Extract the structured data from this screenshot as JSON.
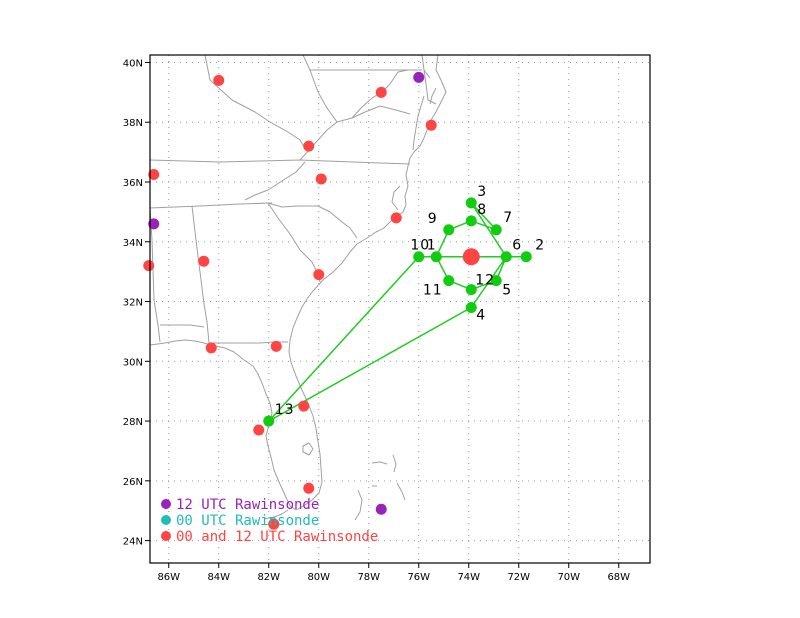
{
  "map": {
    "lon_range": [
      -86.75,
      -66.75
    ],
    "lat_range": [
      23.25,
      40.25
    ],
    "x_ticks": [
      {
        "lon": -86,
        "label": "86W"
      },
      {
        "lon": -84,
        "label": "84W"
      },
      {
        "lon": -82,
        "label": "82W"
      },
      {
        "lon": -80,
        "label": "80W"
      },
      {
        "lon": -78,
        "label": "78W"
      },
      {
        "lon": -76,
        "label": "76W"
      },
      {
        "lon": -74,
        "label": "74W"
      },
      {
        "lon": -72,
        "label": "72W"
      },
      {
        "lon": -70,
        "label": "70W"
      },
      {
        "lon": -68,
        "label": "68W"
      }
    ],
    "y_ticks": [
      {
        "lat": 24,
        "label": "24N"
      },
      {
        "lat": 26,
        "label": "26N"
      },
      {
        "lat": 28,
        "label": "28N"
      },
      {
        "lat": 30,
        "label": "30N"
      },
      {
        "lat": 32,
        "label": "32N"
      },
      {
        "lat": 34,
        "label": "34N"
      },
      {
        "lat": 36,
        "label": "36N"
      },
      {
        "lat": 38,
        "label": "38N"
      },
      {
        "lat": 40,
        "label": "40N"
      }
    ],
    "grid": true,
    "colors": {
      "coast": "#a0a0a0",
      "grid": "#9a9a9a",
      "track": "#22cc22",
      "point": "#11cc11",
      "center": "#ff4444",
      "both_utc": "#ff4444",
      "utc12": "#9922bb",
      "utc00": "#22bbbb"
    },
    "legend": [
      {
        "label": "12 UTC Rawinsonde",
        "color": "#9922bb"
      },
      {
        "label": "00 UTC Rawinsonde",
        "color": "#22bbbb"
      },
      {
        "label": "00 and 12 UTC Rawinsonde",
        "color": "#ff4444"
      }
    ],
    "storm_center": {
      "lon": -73.9,
      "lat": 33.5
    },
    "drop_points": [
      {
        "label": "1",
        "lon": -76.0,
        "lat": 33.5
      },
      {
        "label": "2",
        "lon": -71.7,
        "lat": 33.5
      },
      {
        "label": "3",
        "lon": -73.9,
        "lat": 35.3
      },
      {
        "label": "4",
        "lon": -73.9,
        "lat": 31.8
      },
      {
        "label": "5",
        "lon": -72.9,
        "lat": 32.7
      },
      {
        "label": "6",
        "lon": -72.5,
        "lat": 33.5
      },
      {
        "label": "7",
        "lon": -72.9,
        "lat": 34.4
      },
      {
        "label": "8",
        "lon": -73.9,
        "lat": 34.7
      },
      {
        "label": "9",
        "lon": -74.8,
        "lat": 34.4
      },
      {
        "label": "10",
        "lon": -75.3,
        "lat": 33.5
      },
      {
        "label": "11",
        "lon": -74.8,
        "lat": 32.7
      },
      {
        "label": "12",
        "lon": -73.9,
        "lat": 32.4
      },
      {
        "label": "13",
        "lon": -82.0,
        "lat": 28.0
      }
    ],
    "track_order": [
      "13",
      "1",
      "10",
      "2",
      "6",
      "3",
      "7",
      "8",
      "9",
      "10",
      "11",
      "12",
      "5",
      "6",
      "4",
      "13"
    ],
    "rawinsondes": [
      {
        "lon": -76.0,
        "lat": 39.5,
        "type": "utc12"
      },
      {
        "lon": -86.6,
        "lat": 34.6,
        "type": "utc12"
      },
      {
        "lon": -77.5,
        "lat": 25.05,
        "type": "utc12"
      },
      {
        "lon": -81.8,
        "lat": 24.55,
        "type": "utc00"
      },
      {
        "lon": -84.0,
        "lat": 39.4,
        "type": "both"
      },
      {
        "lon": -77.5,
        "lat": 39.0,
        "type": "both"
      },
      {
        "lon": -75.5,
        "lat": 37.9,
        "type": "both"
      },
      {
        "lon": -80.4,
        "lat": 37.2,
        "type": "both"
      },
      {
        "lon": -86.6,
        "lat": 36.25,
        "type": "both"
      },
      {
        "lon": -79.9,
        "lat": 36.1,
        "type": "both"
      },
      {
        "lon": -76.9,
        "lat": 34.8,
        "type": "both"
      },
      {
        "lon": -84.6,
        "lat": 33.35,
        "type": "both"
      },
      {
        "lon": -86.8,
        "lat": 33.2,
        "type": "both"
      },
      {
        "lon": -80.0,
        "lat": 32.9,
        "type": "both"
      },
      {
        "lon": -84.3,
        "lat": 30.45,
        "type": "both"
      },
      {
        "lon": -81.7,
        "lat": 30.5,
        "type": "both"
      },
      {
        "lon": -80.6,
        "lat": 28.5,
        "type": "both"
      },
      {
        "lon": -82.4,
        "lat": 27.7,
        "type": "both"
      },
      {
        "lon": -80.4,
        "lat": 25.75,
        "type": "both"
      },
      {
        "lon": -81.8,
        "lat": 24.55,
        "type": "both"
      }
    ]
  }
}
